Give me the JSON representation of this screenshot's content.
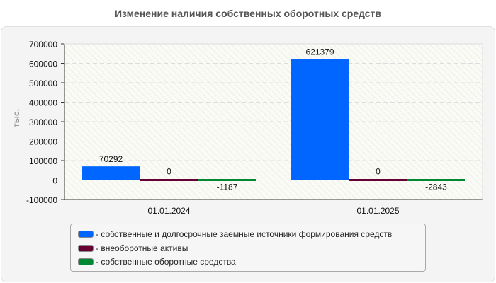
{
  "chart_data": {
    "type": "bar",
    "title": "Изменение наличия собственных оборотных средств",
    "xlabel": "",
    "ylabel": "тыс.",
    "ylim": [
      -100000,
      700000
    ],
    "yticks": [
      "700000",
      "600000",
      "500000",
      "400000",
      "300000",
      "200000",
      "100000",
      "0",
      "-100000"
    ],
    "categories": [
      "01.01.2024",
      "01.01.2025"
    ],
    "series": [
      {
        "name": "собственные и долгосрочные заемные источники формирования средств",
        "color": "#0066ff",
        "values": [
          70292,
          621379
        ],
        "labels": [
          "70292",
          "621379"
        ]
      },
      {
        "name": "внеоборотные активы",
        "color": "#660033",
        "values": [
          0,
          0
        ],
        "labels": [
          "0",
          "0"
        ]
      },
      {
        "name": "собственные оборотные средства",
        "color": "#008833",
        "values": [
          -1187,
          -2843
        ],
        "labels": [
          "-1187",
          "-2843"
        ]
      }
    ],
    "grid": true,
    "legend_position": "bottom"
  },
  "legend": {
    "items": [
      {
        "label": "- собственные и долгосрочные заемные источники формирования средств"
      },
      {
        "label": "- внеоборотные активы"
      },
      {
        "label": "- собственные оборотные средства"
      }
    ]
  }
}
